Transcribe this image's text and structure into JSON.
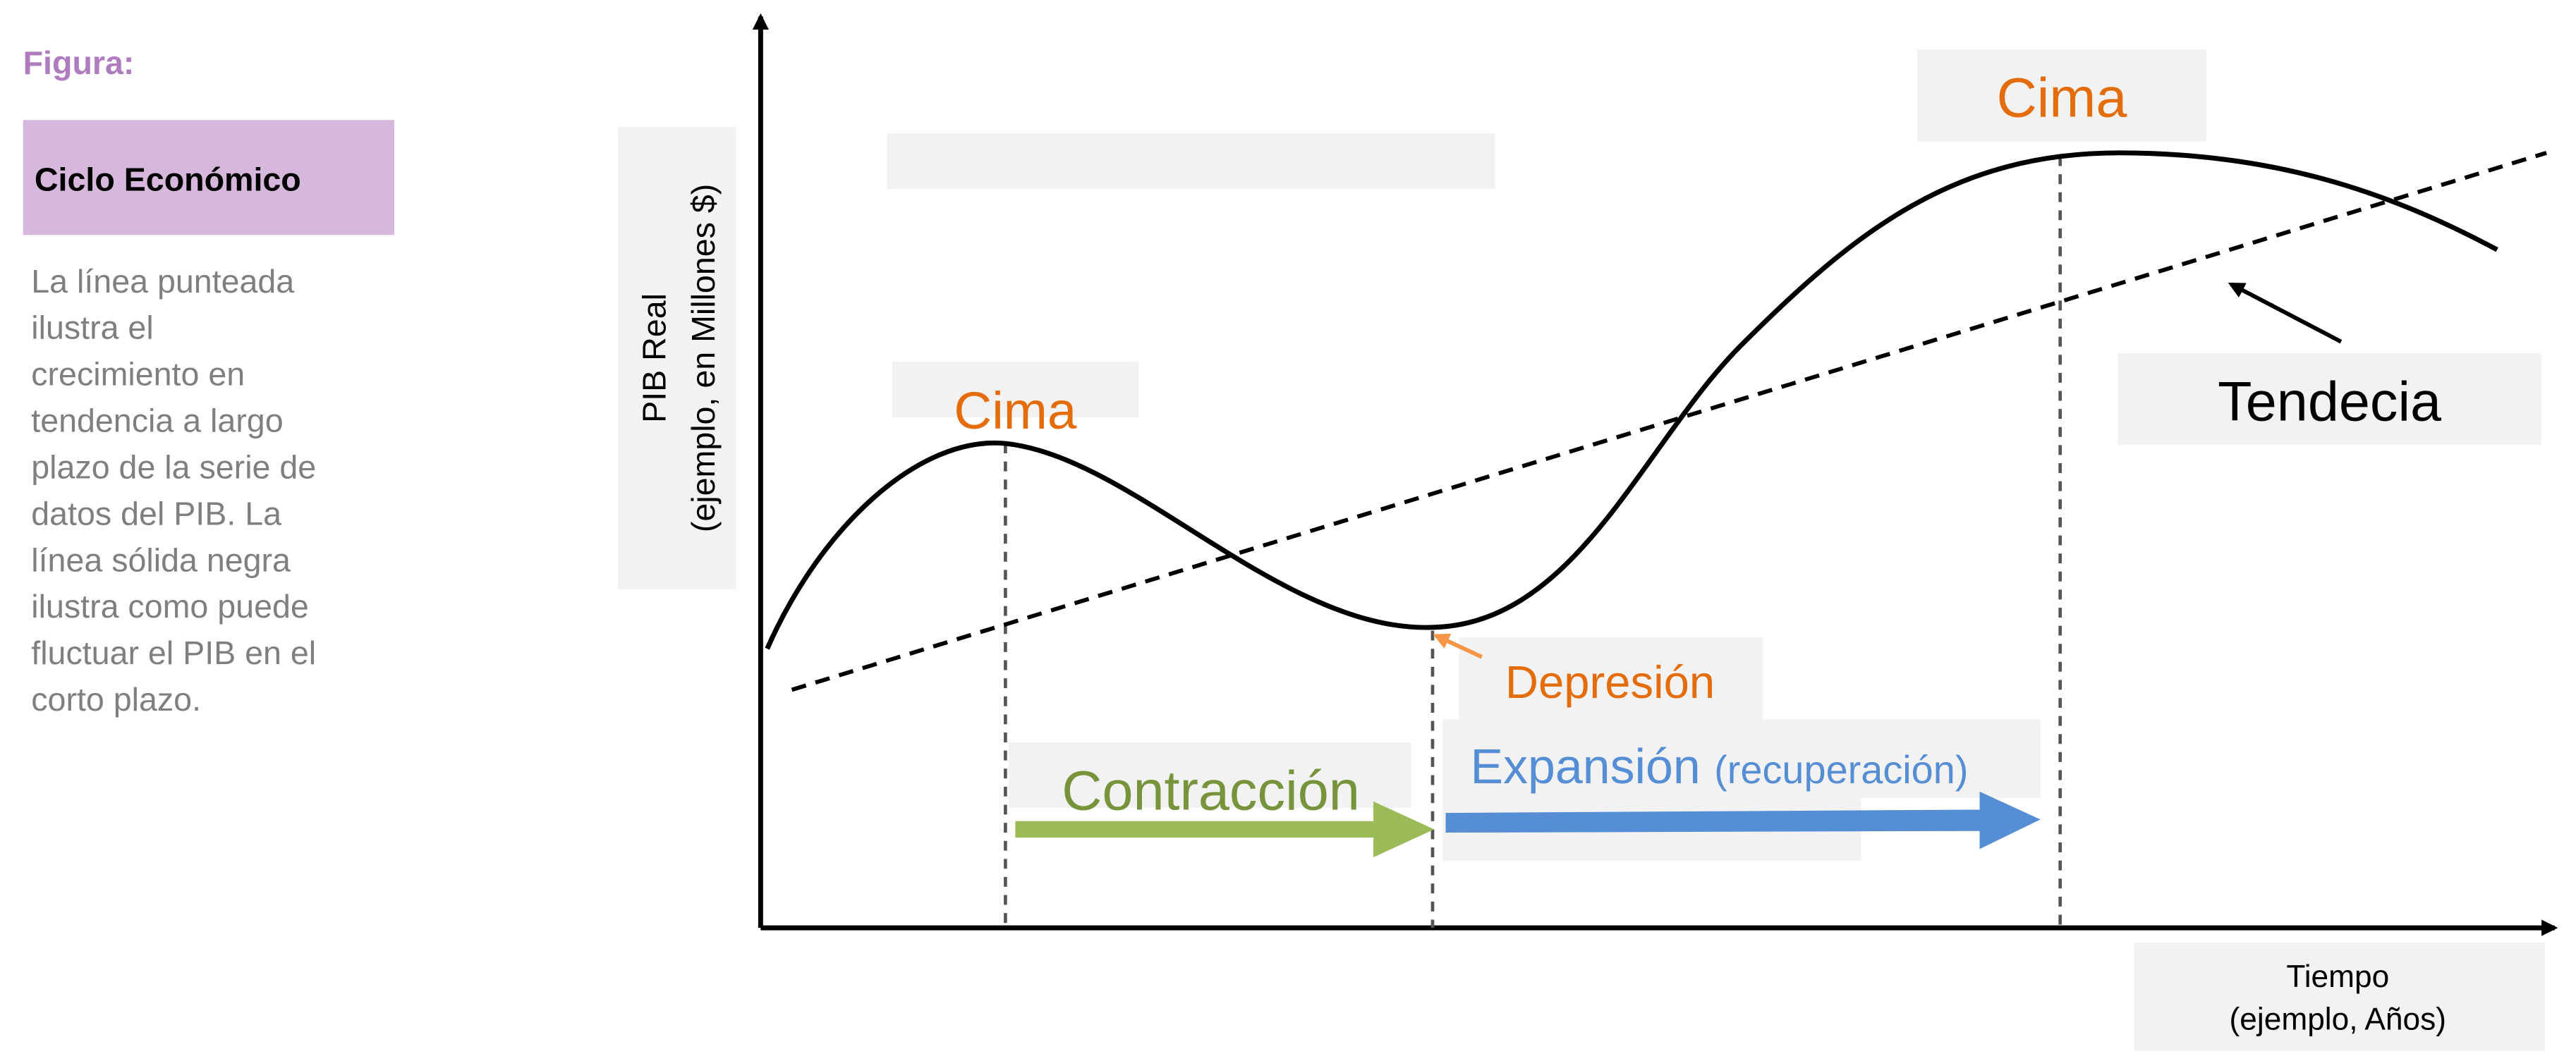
{
  "figure_label": "Figura:",
  "title": "Ciclo Económico",
  "description": [
    "La línea punteada",
    "ilustra el",
    "crecimiento en",
    "tendencia a largo",
    "plazo de la serie de",
    "datos del PIB. La",
    "línea sólida negra",
    "ilustra como puede",
    "fluctuar el PIB en el",
    "corto plazo."
  ],
  "y_axis_label": [
    "PIB Real",
    "(ejemplo, en Millones $)"
  ],
  "x_axis_label": [
    "Tiempo",
    "(ejemplo, Años)"
  ],
  "labels": {
    "peak_1": "Cima",
    "peak_2": "Cima",
    "trough": "Depresión",
    "contraction": "Contracción",
    "expansion": "Expansión",
    "expansion_note": "(recuperación)",
    "trend": "Tendecia"
  }
}
